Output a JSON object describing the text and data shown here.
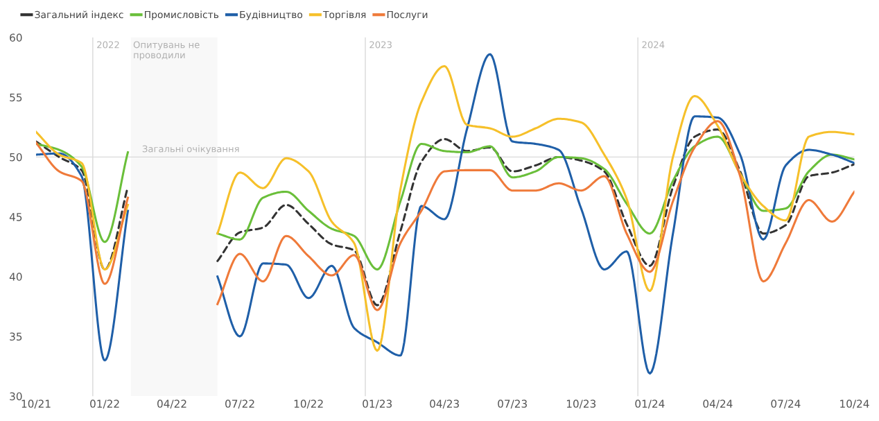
{
  "chart_data": {
    "type": "line",
    "x": [
      "2021-10",
      "2021-11",
      "2021-12",
      "2022-01",
      "2022-02",
      "2022-03",
      "2022-04",
      "2022-05",
      "2022-06",
      "2022-07",
      "2022-08",
      "2022-09",
      "2022-10",
      "2022-11",
      "2022-12",
      "2023-01",
      "2023-02",
      "2023-03",
      "2023-04",
      "2023-05",
      "2023-06",
      "2023-07",
      "2023-08",
      "2023-09",
      "2023-10",
      "2023-11",
      "2023-12",
      "2024-01",
      "2024-02",
      "2024-03",
      "2024-04",
      "2024-05",
      "2024-06",
      "2024-07",
      "2024-08",
      "2024-09",
      "2024-10"
    ],
    "series": [
      {
        "name": "Загальний індекс",
        "color": "#333333",
        "line_style": "dashed",
        "values": [
          51.3,
          50.0,
          48.9,
          40.6,
          47.5,
          null,
          null,
          null,
          41.3,
          43.7,
          44.1,
          46.0,
          44.4,
          42.7,
          42.2,
          37.6,
          43.8,
          49.6,
          51.5,
          50.5,
          50.8,
          48.8,
          49.3,
          50.0,
          49.7,
          48.8,
          44.4,
          40.9,
          47.5,
          51.7,
          52.3,
          48.8,
          43.6,
          44.3,
          48.4,
          48.7,
          49.4
        ]
      },
      {
        "name": "Промисловість",
        "color": "#6abf3a",
        "line_style": "solid",
        "values": [
          51.1,
          50.6,
          49.2,
          42.9,
          50.4,
          null,
          null,
          null,
          43.6,
          43.1,
          46.6,
          47.1,
          45.5,
          44.0,
          43.4,
          40.6,
          46.3,
          51.1,
          50.5,
          50.4,
          50.9,
          48.3,
          48.8,
          50.0,
          49.9,
          49.0,
          46.1,
          43.6,
          48.0,
          50.9,
          51.7,
          48.6,
          45.5,
          45.7,
          48.8,
          50.2,
          49.8
        ]
      },
      {
        "name": "Будівництво",
        "color": "#1f5fa8",
        "line_style": "solid",
        "values": [
          50.2,
          50.3,
          48.4,
          33.0,
          45.5,
          null,
          null,
          null,
          40.0,
          35.0,
          41.1,
          41.0,
          38.2,
          40.9,
          35.7,
          34.5,
          33.4,
          45.9,
          44.8,
          52.3,
          58.6,
          51.3,
          51.1,
          50.6,
          45.7,
          40.6,
          42.1,
          31.9,
          43.6,
          53.4,
          53.3,
          50.2,
          43.1,
          49.3,
          50.6,
          50.2,
          49.5
        ]
      },
      {
        "name": "Торгівля",
        "color": "#f6c02a",
        "line_style": "solid",
        "values": [
          52.1,
          50.2,
          49.5,
          40.6,
          46.0,
          null,
          null,
          null,
          43.6,
          48.7,
          47.4,
          49.9,
          48.8,
          44.6,
          42.8,
          33.8,
          47.3,
          54.6,
          57.6,
          52.7,
          52.4,
          51.7,
          52.4,
          53.2,
          52.9,
          50.2,
          46.5,
          38.8,
          50.0,
          55.1,
          52.6,
          48.6,
          45.9,
          44.7,
          51.7,
          52.1,
          51.9
        ]
      },
      {
        "name": "Послуги",
        "color": "#ef7a3a",
        "line_style": "solid",
        "values": [
          51.2,
          48.8,
          48.0,
          39.4,
          46.6,
          null,
          null,
          null,
          37.7,
          41.9,
          39.6,
          43.4,
          41.7,
          40.1,
          41.8,
          37.2,
          42.8,
          45.5,
          48.8,
          48.9,
          48.9,
          47.2,
          47.2,
          47.8,
          47.2,
          48.4,
          43.6,
          40.4,
          46.3,
          50.8,
          53.0,
          48.4,
          39.6,
          42.8,
          46.4,
          44.6,
          47.1
        ]
      }
    ],
    "xlim": [
      "2021-10",
      "2024-10"
    ],
    "xticks": [
      {
        "value": "2021-10",
        "label": "10/21"
      },
      {
        "value": "2022-01",
        "label": "01/22"
      },
      {
        "value": "2022-04",
        "label": "04/22"
      },
      {
        "value": "2022-07",
        "label": "07/22"
      },
      {
        "value": "2022-10",
        "label": "10/22"
      },
      {
        "value": "2023-01",
        "label": "01/23"
      },
      {
        "value": "2023-04",
        "label": "04/23"
      },
      {
        "value": "2023-07",
        "label": "07/23"
      },
      {
        "value": "2023-10",
        "label": "10/23"
      },
      {
        "value": "2024-01",
        "label": "01/24"
      },
      {
        "value": "2024-04",
        "label": "04/24"
      },
      {
        "value": "2024-07",
        "label": "07/24"
      },
      {
        "value": "2024-10",
        "label": "10/24"
      }
    ],
    "ylim": [
      30,
      60
    ],
    "yticks": [
      30,
      35,
      40,
      45,
      50,
      55,
      60
    ],
    "ref_lines": [
      {
        "axis": "y",
        "value": 50,
        "label": "Загальні очікування",
        "color": "#d9d9d9"
      },
      {
        "axis": "x",
        "value": "2021-12-16",
        "label": "2022",
        "color": "#d9d9d9"
      },
      {
        "axis": "x",
        "value": "2022-12-16",
        "label": "2023",
        "color": "#d9d9d9"
      },
      {
        "axis": "x",
        "value": "2023-12-16",
        "label": "2024",
        "color": "#d9d9d9"
      }
    ],
    "bands": [
      {
        "axis": "x",
        "from": "2022-02-05",
        "to": "2022-06",
        "label": "Опитувань не\nпроводили",
        "color": "#f8f8f8"
      }
    ],
    "grid": false,
    "legend": "top left",
    "marker": "none"
  }
}
